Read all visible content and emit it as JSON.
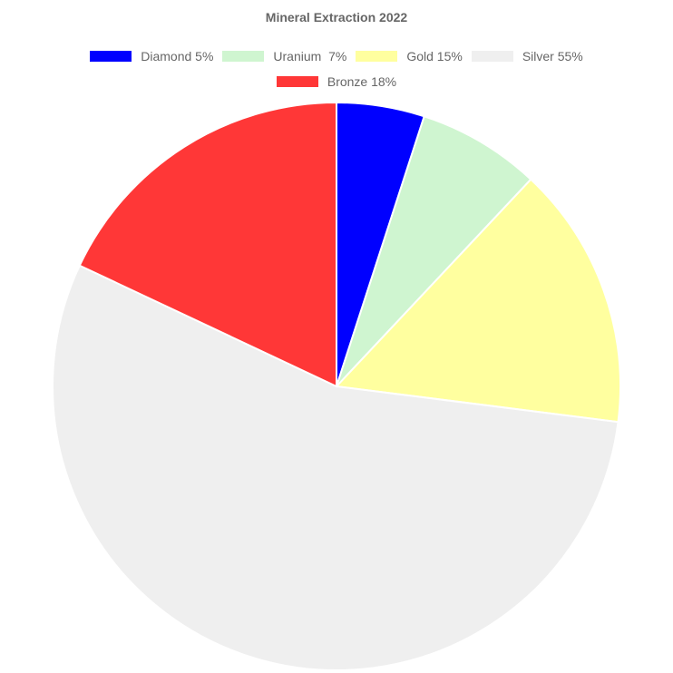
{
  "chart_data": {
    "type": "pie",
    "title": "Mineral Extraction 2022",
    "legend_position": "top",
    "categories": [
      "Diamond",
      "Uranium",
      "Gold",
      "Silver",
      "Bronze"
    ],
    "values": [
      5,
      7,
      15,
      55,
      18
    ],
    "legend_labels": [
      "Diamond 5%",
      "Uranium  7%",
      "Gold 15%",
      "Silver 55%",
      "Bronze 18%"
    ],
    "colors": [
      "#0000ff",
      "#cff5d0",
      "#ffff9f",
      "#efefef",
      "#ff3737"
    ]
  }
}
